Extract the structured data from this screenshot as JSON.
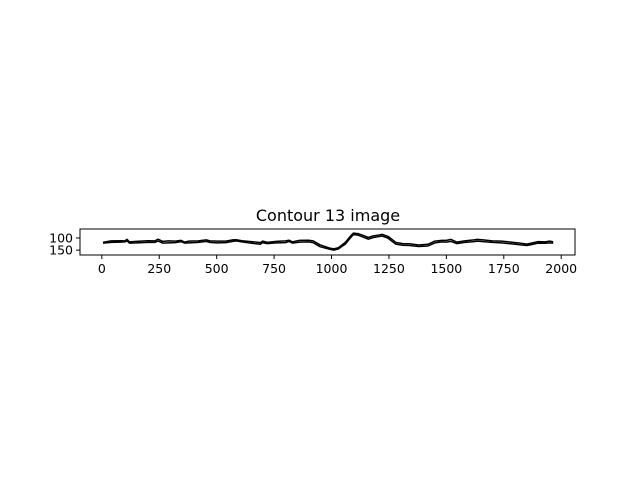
{
  "chart_data": {
    "type": "line",
    "title": "Contour 13 image",
    "xlabel": "",
    "ylabel": "",
    "xlim": [
      -95,
      2060
    ],
    "ylim": [
      170,
      63
    ],
    "y_inverted": true,
    "x_ticks": [
      0,
      250,
      500,
      750,
      1000,
      1250,
      1500,
      1750,
      2000
    ],
    "y_ticks": [
      100,
      150
    ],
    "grid": false,
    "legend": "none",
    "line_color": "#000000",
    "series": [
      {
        "values": [
          [
            5,
            118
          ],
          [
            40,
            112
          ],
          [
            80,
            111
          ],
          [
            100,
            112
          ],
          [
            110,
            106
          ],
          [
            120,
            116
          ],
          [
            150,
            114
          ],
          [
            200,
            111
          ],
          [
            230,
            112
          ],
          [
            245,
            105
          ],
          [
            265,
            114
          ],
          [
            290,
            112
          ],
          [
            320,
            113
          ],
          [
            345,
            110
          ],
          [
            360,
            117
          ],
          [
            380,
            113
          ],
          [
            420,
            112
          ],
          [
            455,
            108
          ],
          [
            470,
            112
          ],
          [
            500,
            113
          ],
          [
            540,
            113
          ],
          [
            570,
            108
          ],
          [
            585,
            107
          ],
          [
            610,
            111
          ],
          [
            650,
            115
          ],
          [
            690,
            119
          ],
          [
            700,
            113
          ],
          [
            720,
            118
          ],
          [
            760,
            114
          ],
          [
            800,
            112
          ],
          [
            815,
            109
          ],
          [
            830,
            116
          ],
          [
            860,
            110
          ],
          [
            900,
            109
          ],
          [
            920,
            112
          ],
          [
            950,
            128
          ],
          [
            990,
            141
          ],
          [
            1010,
            145
          ],
          [
            1030,
            140
          ],
          [
            1060,
            118
          ],
          [
            1080,
            95
          ],
          [
            1095,
            80
          ],
          [
            1115,
            82
          ],
          [
            1140,
            90
          ],
          [
            1160,
            98
          ],
          [
            1180,
            92
          ],
          [
            1200,
            89
          ],
          [
            1220,
            85
          ],
          [
            1245,
            93
          ],
          [
            1260,
            103
          ],
          [
            1280,
            118
          ],
          [
            1310,
            123
          ],
          [
            1340,
            124
          ],
          [
            1380,
            129
          ],
          [
            1420,
            126
          ],
          [
            1450,
            113
          ],
          [
            1480,
            110
          ],
          [
            1500,
            110
          ],
          [
            1520,
            106
          ],
          [
            1545,
            117
          ],
          [
            1580,
            112
          ],
          [
            1620,
            108
          ],
          [
            1635,
            106
          ],
          [
            1660,
            108
          ],
          [
            1700,
            112
          ],
          [
            1740,
            113
          ],
          [
            1780,
            117
          ],
          [
            1820,
            121
          ],
          [
            1850,
            125
          ],
          [
            1870,
            121
          ],
          [
            1900,
            115
          ],
          [
            1930,
            116
          ],
          [
            1950,
            113
          ],
          [
            1965,
            116
          ]
        ]
      },
      {
        "values": [
          [
            5,
            121
          ],
          [
            40,
            118
          ],
          [
            80,
            117
          ],
          [
            100,
            116
          ],
          [
            110,
            112
          ],
          [
            120,
            121
          ],
          [
            150,
            120
          ],
          [
            200,
            118
          ],
          [
            230,
            118
          ],
          [
            245,
            113
          ],
          [
            265,
            121
          ],
          [
            290,
            120
          ],
          [
            320,
            119
          ],
          [
            345,
            115
          ],
          [
            360,
            121
          ],
          [
            380,
            120
          ],
          [
            420,
            118
          ],
          [
            455,
            114
          ],
          [
            470,
            118
          ],
          [
            500,
            120
          ],
          [
            540,
            119
          ],
          [
            570,
            114
          ],
          [
            585,
            112
          ],
          [
            610,
            116
          ],
          [
            650,
            121
          ],
          [
            690,
            126
          ],
          [
            700,
            119
          ],
          [
            720,
            123
          ],
          [
            760,
            120
          ],
          [
            800,
            119
          ],
          [
            815,
            114
          ],
          [
            830,
            121
          ],
          [
            860,
            117
          ],
          [
            900,
            116
          ],
          [
            920,
            119
          ],
          [
            950,
            136
          ],
          [
            990,
            146
          ],
          [
            1010,
            150
          ],
          [
            1030,
            145
          ],
          [
            1060,
            125
          ],
          [
            1080,
            102
          ],
          [
            1095,
            86
          ],
          [
            1115,
            88
          ],
          [
            1140,
            97
          ],
          [
            1160,
            105
          ],
          [
            1180,
            99
          ],
          [
            1200,
            95
          ],
          [
            1220,
            92
          ],
          [
            1245,
            100
          ],
          [
            1260,
            111
          ],
          [
            1280,
            125
          ],
          [
            1310,
            130
          ],
          [
            1340,
            131
          ],
          [
            1380,
            135
          ],
          [
            1420,
            133
          ],
          [
            1450,
            120
          ],
          [
            1480,
            116
          ],
          [
            1500,
            117
          ],
          [
            1520,
            114
          ],
          [
            1545,
            123
          ],
          [
            1580,
            118
          ],
          [
            1620,
            115
          ],
          [
            1635,
            113
          ],
          [
            1660,
            115
          ],
          [
            1700,
            118
          ],
          [
            1740,
            120
          ],
          [
            1780,
            124
          ],
          [
            1820,
            128
          ],
          [
            1850,
            131
          ],
          [
            1870,
            127
          ],
          [
            1900,
            121
          ],
          [
            1930,
            122
          ],
          [
            1950,
            120
          ],
          [
            1965,
            121
          ]
        ]
      }
    ]
  }
}
